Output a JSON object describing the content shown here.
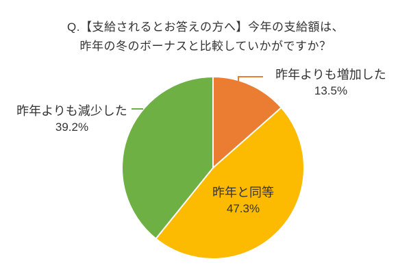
{
  "title": {
    "line1": "Q.【支給されるとお答えの方へ】今年の支給額は、",
    "line2": "昨年の冬のボーナスと比較していかがですか？"
  },
  "colors": {
    "background": "#ffffff",
    "text": "#333333",
    "slice_border": "#ffffff"
  },
  "chart_data": {
    "type": "pie",
    "title": "Q.【支給されるとお答えの方へ】今年の支給額は、昨年の冬のボーナスと比較していかがですか？",
    "start_angle_deg": 0,
    "direction": "clockwise",
    "legend": "none",
    "label_style": "outside leader lines for small slices, inside label for largest slice",
    "slices": [
      {
        "id": "increased",
        "label": "昨年よりも増加した",
        "value": 13.5,
        "display": "13.5%",
        "color": "#EB7D33"
      },
      {
        "id": "same",
        "label": "昨年と同等",
        "value": 47.3,
        "display": "47.3%",
        "color": "#FCBB00"
      },
      {
        "id": "decreased",
        "label": "昨年よりも減少した",
        "value": 39.2,
        "display": "39.2%",
        "color": "#6FB044"
      }
    ]
  }
}
